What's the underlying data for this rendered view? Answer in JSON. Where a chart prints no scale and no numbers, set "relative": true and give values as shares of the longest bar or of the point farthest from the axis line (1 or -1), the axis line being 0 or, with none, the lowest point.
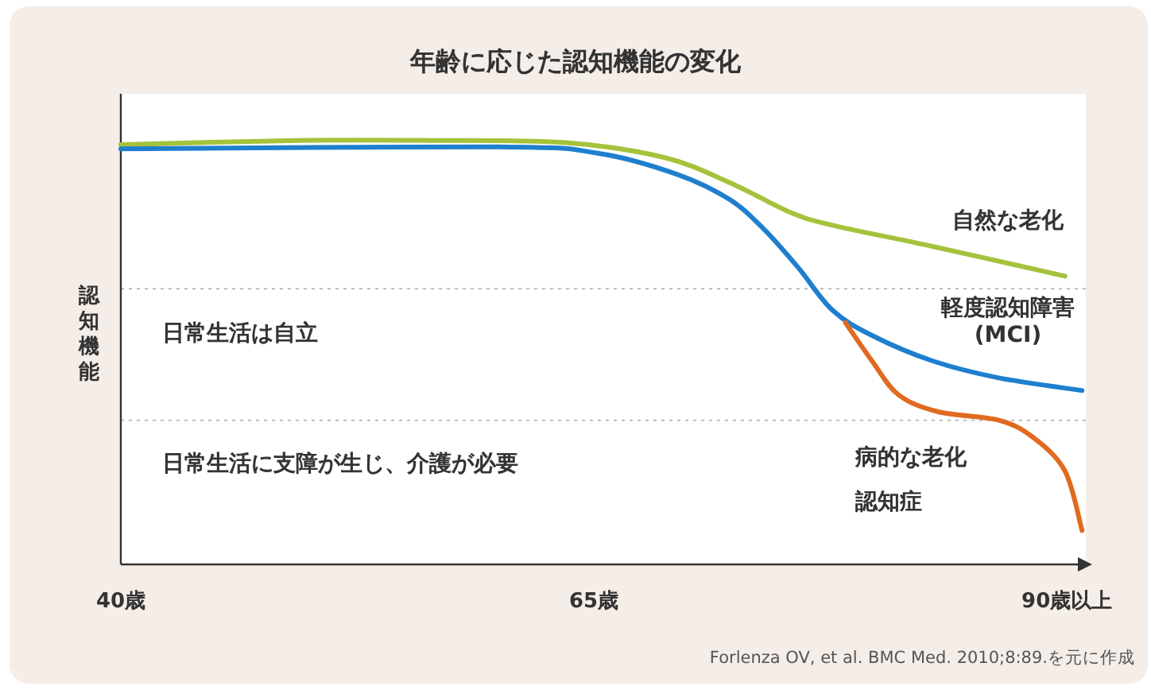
{
  "chart_data": {
    "type": "line",
    "title": "年齢に応じた認知機能の変化",
    "ylabel": "認知機能",
    "relative": true,
    "xlim": [
      40,
      91
    ],
    "xticks": [
      {
        "value": 40,
        "label": "40歳"
      },
      {
        "value": 65,
        "label": "65歳"
      },
      {
        "value": 90,
        "label": "90歳以上"
      }
    ],
    "series": [
      {
        "name": "自然な老化",
        "color": "#a5c23c",
        "x": [
          40,
          49.3,
          56.3,
          63.4,
          68.7,
          72.2,
          75.4,
          77.6,
          82.9,
          89.9
        ],
        "values": [
          0.99,
          1.0,
          1.0,
          0.995,
          0.96,
          0.9,
          0.83,
          0.8,
          0.75,
          0.68
        ]
      },
      {
        "name": "軽度認知障害\n(MCI)",
        "color": "#1f7fcf",
        "x": [
          40,
          59.9,
          65.2,
          69.4,
          72.2,
          74.0,
          75.8,
          77.6,
          79.7,
          82.9,
          86.4,
          90.8
        ],
        "values": [
          0.98,
          0.985,
          0.97,
          0.92,
          0.86,
          0.79,
          0.7,
          0.6,
          0.54,
          0.48,
          0.44,
          0.41
        ]
      },
      {
        "name": "病的な老化",
        "color": "#e06a1f",
        "x": [
          78.3,
          79.7,
          81.1,
          83.2,
          86.4,
          88.2,
          89.9,
          90.8
        ],
        "values": [
          0.57,
          0.48,
          0.4,
          0.36,
          0.34,
          0.3,
          0.22,
          0.08
        ]
      }
    ],
    "ref_lines": [
      {
        "axis": "y",
        "value": 0.65,
        "color": "#bbbbbb",
        "line_style": "dotted"
      },
      {
        "axis": "y",
        "value": 0.34,
        "color": "#bbbbbb",
        "line_style": "dotted"
      }
    ],
    "annotations": [
      "日常生活は自立",
      "日常生活に支障が生じ、介護が必要",
      "認知症",
      "Forlenza OV, et al. BMC Med. 2010;8:89.を元に作成"
    ]
  }
}
